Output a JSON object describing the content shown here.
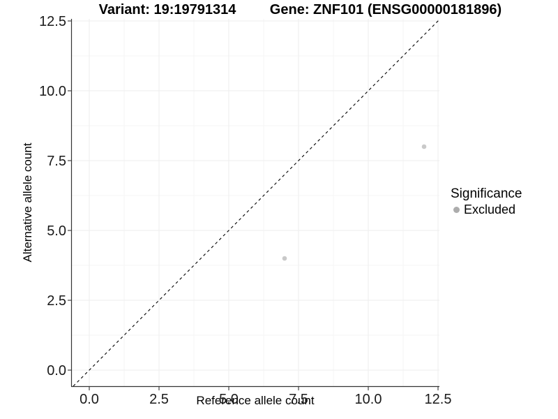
{
  "header": {
    "variant_title": "Variant: 19:19791314",
    "gene_title": "Gene: ZNF101 (ENSG00000181896)"
  },
  "chart_data": {
    "type": "scatter",
    "title": "Variant: 19:19791314  /  Gene: ZNF101 (ENSG00000181896)",
    "xlabel": "Reference allele count",
    "ylabel": "Alternative allele count",
    "xlim": [
      -0.625,
      12.55
    ],
    "ylim": [
      -0.575,
      12.575
    ],
    "ticks": [
      0,
      2.5,
      5,
      7.5,
      10,
      12.5
    ],
    "tick_labels": [
      "0.0",
      "2.5",
      "5.0",
      "7.5",
      "10.0",
      "12.5"
    ],
    "minor_ticks": [
      1.25,
      3.75,
      6.25,
      8.75,
      11.25
    ],
    "grid": true,
    "series": [
      {
        "name": "Excluded",
        "color": "#c9c9c9",
        "point_radius": 3.3,
        "points": [
          [
            7,
            4
          ],
          [
            12,
            8
          ]
        ]
      }
    ],
    "reference_line": {
      "slope": 1,
      "intercept": 0,
      "style": "dashed",
      "color": "#000000"
    },
    "legend": {
      "title": "Significance",
      "position": "right",
      "entries": [
        {
          "label": "Excluded",
          "color": "#acacac"
        }
      ]
    }
  },
  "colors": {
    "background": "#ffffff",
    "axis_line": "#333333",
    "tick_label": "#1a1a1a",
    "grid_major": "#ededed",
    "grid_minor": "#f6f6f6",
    "title_text": "#000000"
  }
}
